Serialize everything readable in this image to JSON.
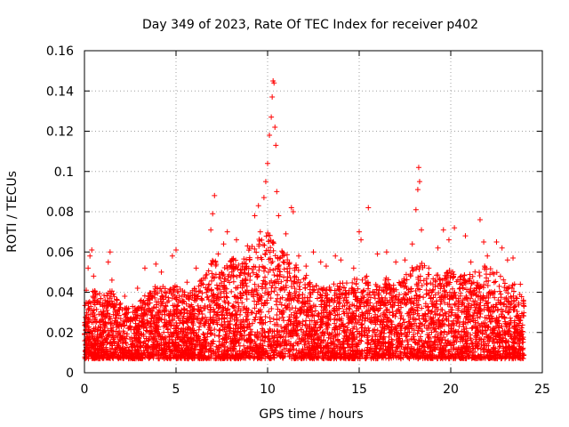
{
  "chart_data": {
    "type": "scatter",
    "title": "Day 349 of 2023, Rate Of TEC Index for receiver p402",
    "xlabel": "GPS time / hours",
    "ylabel": "ROTI / TECUs",
    "xlim": [
      0,
      25
    ],
    "ylim": [
      0,
      0.16
    ],
    "xticks": [
      "0",
      "5",
      "10",
      "15",
      "20",
      "25"
    ],
    "yticks": [
      "0",
      "0.02",
      "0.04",
      "0.06",
      "0.08",
      "0.1",
      "0.12",
      "0.14",
      "0.16"
    ],
    "xtick_values": [
      0,
      5,
      10,
      15,
      20,
      25
    ],
    "ytick_values": [
      0,
      0.02,
      0.04,
      0.06,
      0.08,
      0.1,
      0.12,
      0.14,
      0.16
    ],
    "grid": true,
    "marker": "+",
    "color": "#ff0000",
    "data_x_range": [
      0,
      24
    ],
    "series": [
      {
        "name": "ROTI",
        "points": [
          [
            0.1,
            0.041
          ],
          [
            0.2,
            0.052
          ],
          [
            0.3,
            0.058
          ],
          [
            0.4,
            0.061
          ],
          [
            0.5,
            0.048
          ],
          [
            1.3,
            0.055
          ],
          [
            1.4,
            0.06
          ],
          [
            1.5,
            0.046
          ],
          [
            2.2,
            0.038
          ],
          [
            2.9,
            0.042
          ],
          [
            3.3,
            0.052
          ],
          [
            3.9,
            0.054
          ],
          [
            4.2,
            0.05
          ],
          [
            4.8,
            0.058
          ],
          [
            5.0,
            0.061
          ],
          [
            5.6,
            0.045
          ],
          [
            6.1,
            0.052
          ],
          [
            6.5,
            0.047
          ],
          [
            6.9,
            0.071
          ],
          [
            7.0,
            0.079
          ],
          [
            7.1,
            0.088
          ],
          [
            7.3,
            0.059
          ],
          [
            7.6,
            0.064
          ],
          [
            7.8,
            0.07
          ],
          [
            8.3,
            0.066
          ],
          [
            8.9,
            0.063
          ],
          [
            9.3,
            0.078
          ],
          [
            9.5,
            0.083
          ],
          [
            9.6,
            0.07
          ],
          [
            9.8,
            0.087
          ],
          [
            9.9,
            0.095
          ],
          [
            10.0,
            0.104
          ],
          [
            10.1,
            0.118
          ],
          [
            10.2,
            0.127
          ],
          [
            10.25,
            0.137
          ],
          [
            10.3,
            0.145
          ],
          [
            10.35,
            0.144
          ],
          [
            10.4,
            0.122
          ],
          [
            10.45,
            0.113
          ],
          [
            10.5,
            0.09
          ],
          [
            10.6,
            0.078
          ],
          [
            11.0,
            0.069
          ],
          [
            11.3,
            0.082
          ],
          [
            11.4,
            0.08
          ],
          [
            11.7,
            0.058
          ],
          [
            12.1,
            0.053
          ],
          [
            12.5,
            0.06
          ],
          [
            12.9,
            0.055
          ],
          [
            13.2,
            0.053
          ],
          [
            13.7,
            0.058
          ],
          [
            14.0,
            0.056
          ],
          [
            14.7,
            0.052
          ],
          [
            15.0,
            0.07
          ],
          [
            15.1,
            0.066
          ],
          [
            15.5,
            0.082
          ],
          [
            16.0,
            0.059
          ],
          [
            16.5,
            0.06
          ],
          [
            17.0,
            0.055
          ],
          [
            17.5,
            0.056
          ],
          [
            17.9,
            0.064
          ],
          [
            18.1,
            0.081
          ],
          [
            18.2,
            0.091
          ],
          [
            18.25,
            0.102
          ],
          [
            18.3,
            0.095
          ],
          [
            18.4,
            0.071
          ],
          [
            18.8,
            0.052
          ],
          [
            19.3,
            0.062
          ],
          [
            19.6,
            0.071
          ],
          [
            19.9,
            0.066
          ],
          [
            20.2,
            0.072
          ],
          [
            20.8,
            0.068
          ],
          [
            21.1,
            0.055
          ],
          [
            21.6,
            0.076
          ],
          [
            21.8,
            0.065
          ],
          [
            22.0,
            0.058
          ],
          [
            22.5,
            0.065
          ],
          [
            22.8,
            0.062
          ],
          [
            23.1,
            0.056
          ],
          [
            23.4,
            0.057
          ],
          [
            23.8,
            0.044
          ],
          [
            24.0,
            0.033
          ]
        ],
        "envelope": {
          "x": [
            0,
            0.5,
            1,
            1.5,
            2,
            2.5,
            3,
            3.5,
            4,
            4.5,
            5,
            5.5,
            6,
            6.5,
            7,
            7.5,
            8,
            8.5,
            9,
            9.5,
            10,
            10.5,
            11,
            11.5,
            12,
            12.5,
            13,
            13.5,
            14,
            14.5,
            15,
            15.5,
            16,
            16.5,
            17,
            17.5,
            18,
            18.5,
            19,
            19.5,
            20,
            20.5,
            21,
            21.5,
            22,
            22.5,
            23,
            23.5,
            24
          ],
          "typical_max": [
            0.03,
            0.038,
            0.034,
            0.038,
            0.03,
            0.028,
            0.032,
            0.036,
            0.04,
            0.038,
            0.04,
            0.036,
            0.038,
            0.044,
            0.052,
            0.05,
            0.054,
            0.05,
            0.058,
            0.062,
            0.068,
            0.06,
            0.056,
            0.05,
            0.046,
            0.04,
            0.038,
            0.04,
            0.042,
            0.04,
            0.046,
            0.044,
            0.04,
            0.044,
            0.04,
            0.044,
            0.05,
            0.052,
            0.046,
            0.044,
            0.048,
            0.044,
            0.046,
            0.048,
            0.05,
            0.046,
            0.042,
            0.04,
            0.032
          ],
          "floor": 0.003
        }
      }
    ]
  }
}
